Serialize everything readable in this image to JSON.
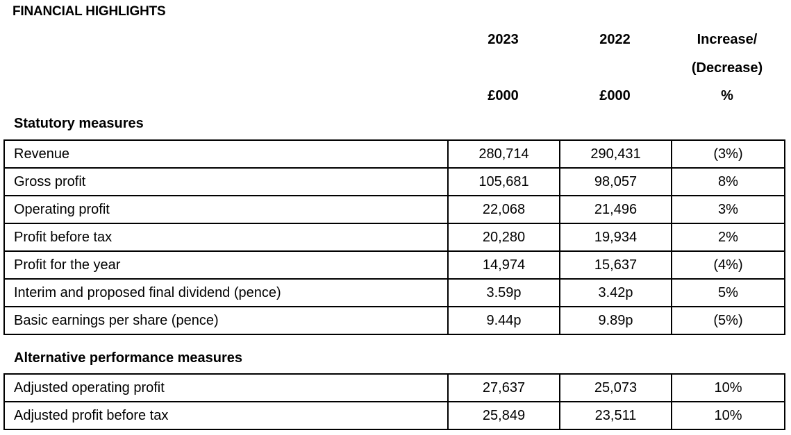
{
  "title": "FINANCIAL HIGHLIGHTS",
  "headers": {
    "col1_line1": "2023",
    "col1_unit": "£000",
    "col2_line1": "2022",
    "col2_unit": "£000",
    "col3_line1": "Increase/",
    "col3_line2": "(Decrease)",
    "col3_unit": "%"
  },
  "statutory": {
    "title": "Statutory measures",
    "rows": [
      {
        "label": "Revenue",
        "y2023": "280,714",
        "y2022": "290,431",
        "change": "(3%)"
      },
      {
        "label": "Gross profit",
        "y2023": "105,681",
        "y2022": "98,057",
        "change": "8%"
      },
      {
        "label": "Operating profit",
        "y2023": "22,068",
        "y2022": "21,496",
        "change": "3%"
      },
      {
        "label": "Profit before tax",
        "y2023": "20,280",
        "y2022": "19,934",
        "change": "2%"
      },
      {
        "label": "Profit for the year",
        "y2023": "14,974",
        "y2022": "15,637",
        "change": "(4%)"
      },
      {
        "label": "Interim and proposed final dividend (pence)",
        "y2023": "3.59p",
        "y2022": "3.42p",
        "change": "5%"
      },
      {
        "label": "Basic earnings per share (pence)",
        "y2023": "9.44p",
        "y2022": "9.89p",
        "change": "(5%)"
      }
    ]
  },
  "apm": {
    "title": "Alternative performance measures",
    "rows": [
      {
        "label": "Adjusted operating profit",
        "y2023": "27,637",
        "y2022": "25,073",
        "change": "10%"
      },
      {
        "label": "Adjusted profit before tax",
        "y2023": "25,849",
        "y2022": "23,511",
        "change": "10%"
      }
    ]
  }
}
